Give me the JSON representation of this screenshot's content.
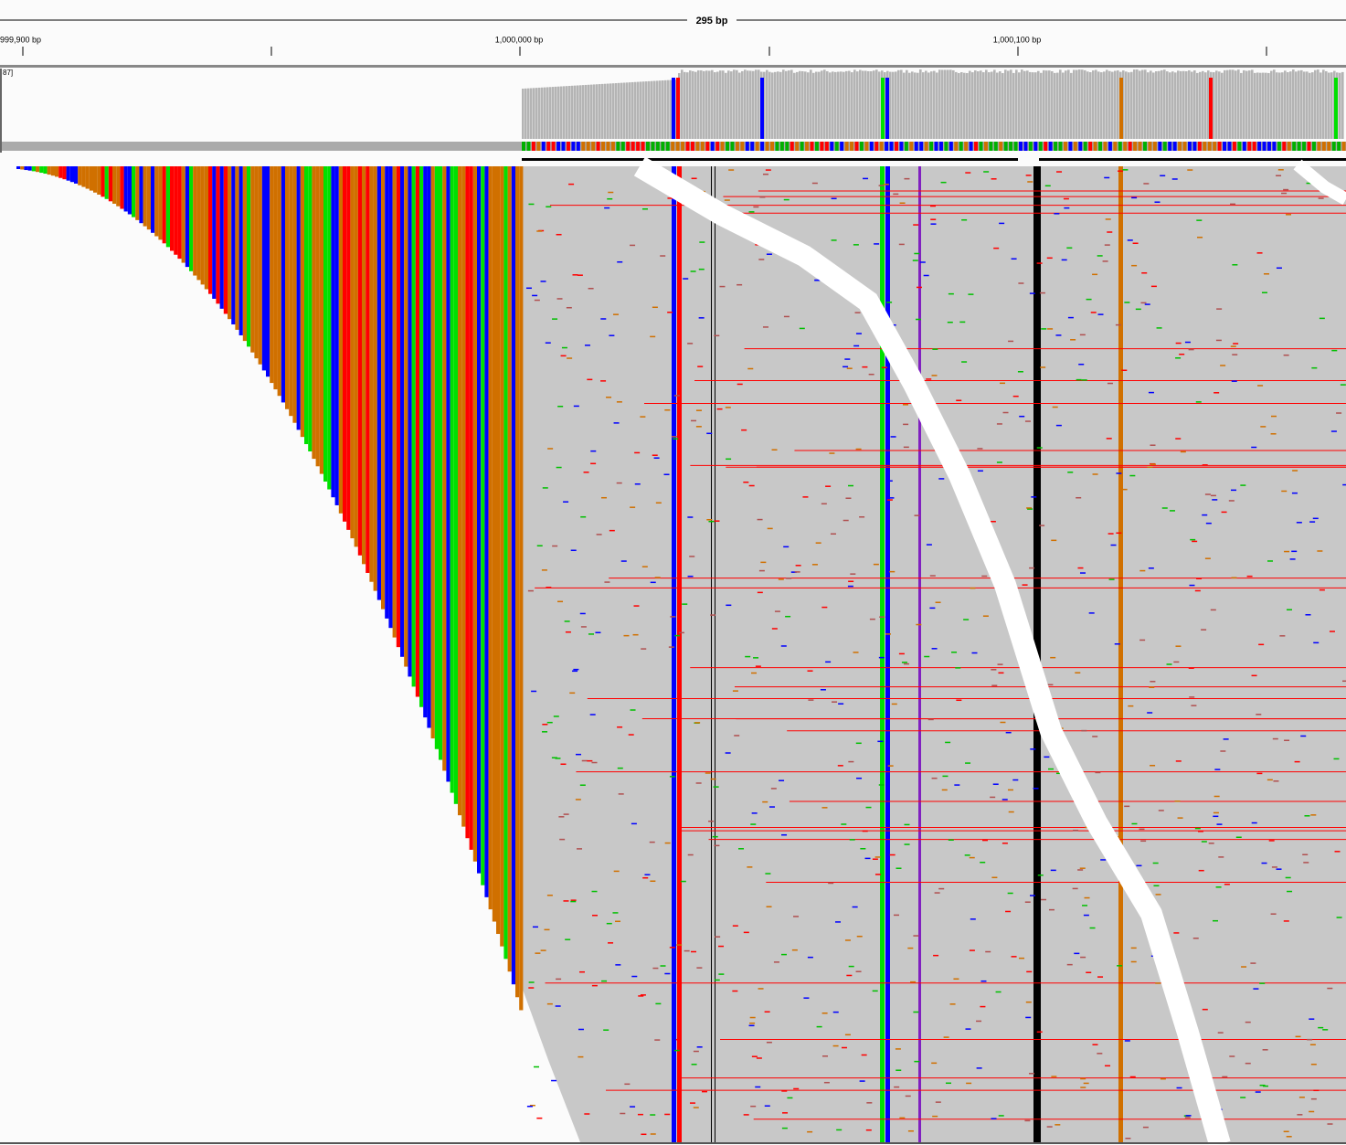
{
  "ruler": {
    "span": "295 bp",
    "ticks": [
      "999,900 bp",
      "1,000,000 bp",
      "1,000,100 bp"
    ]
  },
  "coverage": {
    "range": "87]"
  }
}
